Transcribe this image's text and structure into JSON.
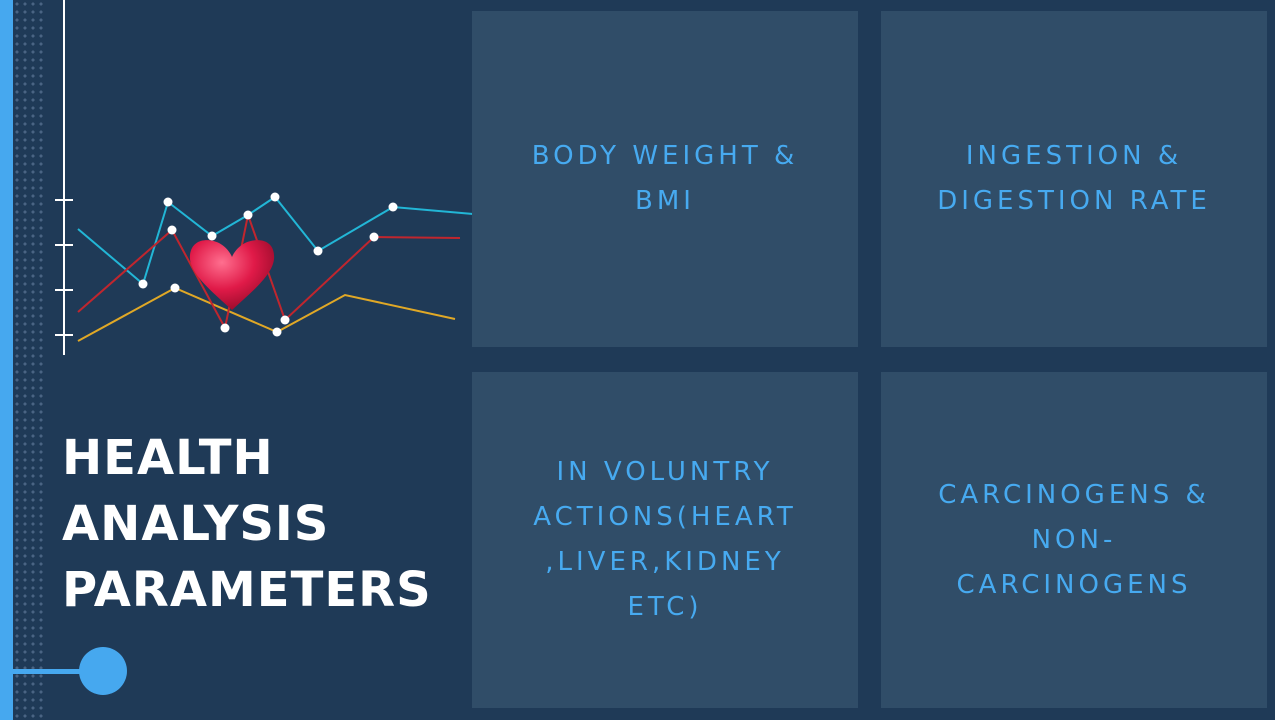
{
  "title": "HEALTH\nANALYSIS\nPARAMETERS",
  "colors": {
    "background": "#1f3a57",
    "accent": "#46a8ef",
    "tile": "#304d68",
    "tile_text": "#47aaf0",
    "title_text": "#ffffff",
    "line_cyan": "#22b6d6",
    "line_red": "#c0262e",
    "line_yellow": "#e0a826"
  },
  "tiles": [
    {
      "label": "BODY WEIGHT &\nBMI"
    },
    {
      "label": "INGESTION &\nDIGESTION RATE"
    },
    {
      "label": "IN VOLUNTRY\nACTIONS(HEART\n,LIVER,KIDNEY\nETC)"
    },
    {
      "label": "CARCINOGENS &\nNON-\nCARCINOGENS"
    }
  ],
  "decor": {
    "chart_icon": "line-chart-icon",
    "heart_icon": "heart-icon"
  }
}
